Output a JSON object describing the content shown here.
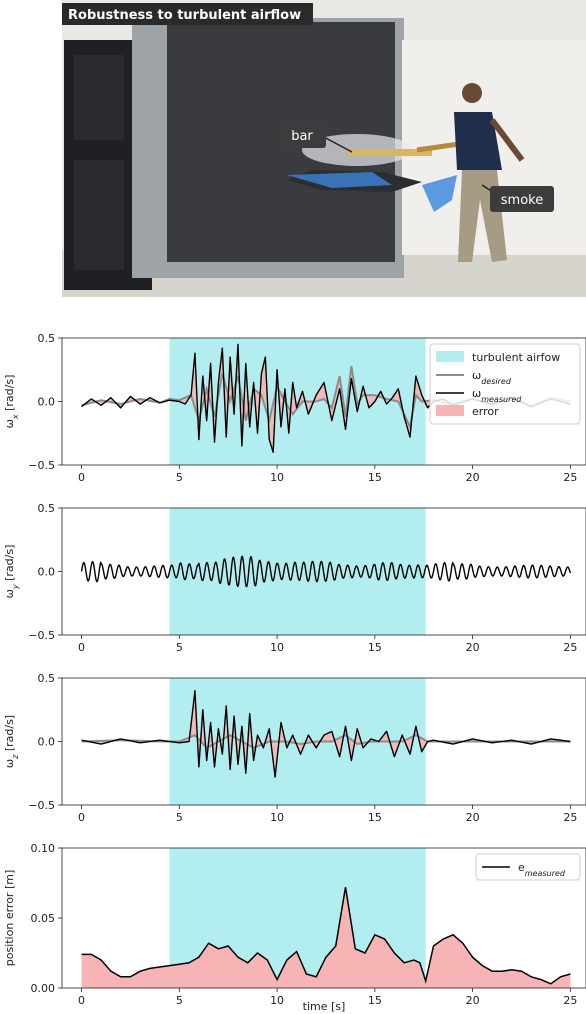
{
  "photo": {
    "title": "Robustness to turbulent airflow",
    "label_bar": "bar",
    "label_smoke": "smoke"
  },
  "colors": {
    "shade": "#b2eeef",
    "error": "#f7b4b4",
    "desired": "#8c8c8c",
    "measured": "#000000"
  },
  "chart_data": [
    {
      "type": "line",
      "ylabel": "ω_x [rad/s]",
      "ylim": [
        -0.5,
        0.5
      ],
      "xlim": [
        -1,
        25.8
      ],
      "yticks": [
        "−0.5",
        "0.0",
        "0.5"
      ],
      "yticks_values": [
        -0.5,
        0.0,
        0.5
      ],
      "xticks": [
        "0",
        "5",
        "10",
        "15",
        "20",
        "25"
      ],
      "xticks_values": [
        0,
        5,
        10,
        15,
        20,
        25
      ],
      "shaded_region": [
        4.5,
        17.6
      ],
      "legend": {
        "placement": "top-right",
        "entries": [
          "turbulent airfow",
          "ω_desired",
          "ω_measured",
          "error"
        ]
      },
      "series": [
        {
          "name": "ω_measured",
          "x": [
            0,
            0.5,
            1,
            1.5,
            2,
            2.5,
            3,
            3.5,
            4,
            4.5,
            5,
            5.3,
            5.6,
            5.8,
            6.0,
            6.2,
            6.4,
            6.6,
            6.8,
            7.0,
            7.2,
            7.4,
            7.6,
            7.8,
            8.0,
            8.2,
            8.4,
            8.6,
            8.8,
            9.0,
            9.2,
            9.4,
            9.6,
            9.8,
            10.0,
            10.2,
            10.4,
            10.6,
            10.8,
            11.0,
            11.3,
            11.6,
            12.0,
            12.4,
            12.8,
            13.2,
            13.5,
            13.8,
            14.1,
            14.4,
            14.7,
            15.0,
            15.3,
            15.6,
            15.9,
            16.2,
            16.5,
            16.8,
            17.1,
            17.4,
            17.7,
            18.0,
            18.5,
            19,
            20,
            21,
            22,
            23,
            24,
            25
          ],
          "values": [
            -0.04,
            0.02,
            -0.03,
            0.03,
            -0.05,
            0.04,
            -0.02,
            0.03,
            -0.01,
            0.01,
            0.0,
            -0.02,
            0.05,
            0.38,
            -0.3,
            0.2,
            -0.15,
            0.3,
            -0.32,
            0.15,
            0.42,
            -0.28,
            0.35,
            -0.1,
            0.45,
            -0.35,
            0.3,
            -0.2,
            0.15,
            -0.25,
            0.22,
            0.35,
            -0.3,
            -0.4,
            0.25,
            -0.2,
            0.1,
            -0.25,
            0.15,
            -0.05,
            0.08,
            -0.1,
            0.05,
            0.15,
            -0.15,
            0.1,
            -0.22,
            0.18,
            -0.08,
            0.12,
            -0.05,
            0.0,
            0.08,
            -0.02,
            0.03,
            0.1,
            -0.12,
            -0.28,
            0.2,
            0.05,
            -0.05,
            0.0,
            0.02,
            -0.03,
            0.02,
            -0.02,
            0.03,
            -0.04,
            0.02,
            -0.02
          ]
        },
        {
          "name": "ω_desired",
          "x": [
            0,
            1,
            2,
            3,
            4,
            4.5,
            5,
            5.6,
            6.0,
            6.4,
            6.8,
            7.2,
            7.6,
            8.0,
            8.4,
            8.8,
            9.2,
            9.6,
            10.0,
            10.4,
            10.8,
            11.3,
            12.0,
            12.4,
            12.8,
            13.2,
            13.5,
            13.8,
            14.1,
            14.4,
            15.0,
            15.6,
            16.2,
            16.8,
            17.1,
            17.4,
            18,
            19,
            20,
            21,
            22,
            23,
            24,
            25
          ],
          "values": [
            -0.03,
            0.01,
            -0.02,
            0.02,
            -0.01,
            0.02,
            0.01,
            0.05,
            -0.15,
            0.1,
            -0.12,
            0.22,
            0.0,
            0.2,
            -0.15,
            0.1,
            0.05,
            -0.15,
            0.12,
            0.0,
            -0.1,
            0.0,
            0.0,
            0.02,
            -0.05,
            0.2,
            -0.12,
            0.28,
            -0.02,
            0.05,
            0.05,
            0.02,
            0.0,
            -0.2,
            0.05,
            0.0,
            0.01,
            -0.02,
            0.02,
            -0.03,
            0.03,
            -0.04,
            0.03,
            0.0
          ]
        }
      ]
    },
    {
      "type": "line",
      "ylabel": "ω_y [rad/s]",
      "ylim": [
        -0.5,
        0.5
      ],
      "xlim": [
        -1,
        25.8
      ],
      "yticks": [
        "−0.5",
        "0.0",
        "0.5"
      ],
      "yticks_values": [
        -0.5,
        0.0,
        0.5
      ],
      "xticks": [
        "0",
        "5",
        "10",
        "15",
        "20",
        "25"
      ],
      "xticks_values": [
        0,
        5,
        10,
        15,
        20,
        25
      ],
      "shaded_region": [
        4.5,
        17.6
      ],
      "series": [
        {
          "name": "ω_measured",
          "oscillation": {
            "x_start": 0,
            "x_end": 25,
            "period": 0.45,
            "amplitude": [
              0.08,
              0.06,
              0.05,
              0.05,
              0.05,
              0.07,
              0.1,
              0.12,
              0.12,
              0.1,
              0.09,
              0.08,
              0.08,
              0.07,
              0.06,
              0.07,
              0.06,
              0.07,
              0.08,
              0.06,
              0.05,
              0.05,
              0.05,
              0.05,
              0.05,
              0.05
            ]
          }
        }
      ]
    },
    {
      "type": "line",
      "ylabel": "ω_z [rad/s]",
      "ylim": [
        -0.5,
        0.5
      ],
      "xlim": [
        -1,
        25.8
      ],
      "yticks": [
        "−0.5",
        "0.0",
        "0.5"
      ],
      "yticks_values": [
        -0.5,
        0.0,
        0.5
      ],
      "xticks": [
        "0",
        "5",
        "10",
        "15",
        "20",
        "25"
      ],
      "xticks_values": [
        0,
        5,
        10,
        15,
        20,
        25
      ],
      "shaded_region": [
        4.5,
        17.6
      ],
      "series": [
        {
          "name": "ω_measured",
          "x": [
            0,
            1,
            2,
            3,
            4,
            4.5,
            5,
            5.5,
            5.8,
            6.0,
            6.2,
            6.4,
            6.6,
            6.8,
            7.0,
            7.2,
            7.4,
            7.6,
            7.8,
            8.0,
            8.2,
            8.4,
            8.6,
            8.8,
            9.0,
            9.3,
            9.6,
            9.9,
            10.2,
            10.5,
            10.8,
            11.2,
            11.6,
            12.0,
            12.4,
            12.8,
            13.2,
            13.5,
            13.8,
            14.1,
            14.4,
            14.8,
            15.2,
            15.6,
            16.0,
            16.4,
            16.8,
            17.1,
            17.4,
            17.7,
            18,
            19,
            20,
            21,
            22,
            23,
            24,
            25
          ],
          "values": [
            0.01,
            -0.02,
            0.02,
            -0.01,
            0.01,
            0.0,
            -0.01,
            0.0,
            0.4,
            -0.2,
            0.25,
            -0.15,
            0.15,
            -0.2,
            0.1,
            -0.1,
            0.28,
            -0.22,
            0.2,
            -0.18,
            0.12,
            -0.25,
            0.22,
            -0.15,
            0.05,
            -0.05,
            0.1,
            -0.28,
            0.15,
            -0.05,
            0.05,
            -0.1,
            0.05,
            -0.05,
            0.05,
            0.08,
            -0.12,
            0.12,
            -0.15,
            0.1,
            -0.05,
            0.02,
            0.0,
            0.08,
            -0.12,
            0.05,
            -0.1,
            0.12,
            -0.08,
            0.0,
            0.01,
            -0.02,
            0.02,
            -0.01,
            0.01,
            -0.02,
            0.02,
            0.0
          ]
        },
        {
          "name": "ω_desired",
          "x": [
            0,
            2,
            4,
            5,
            5.8,
            6.4,
            7.0,
            7.6,
            8.2,
            8.8,
            9.6,
            10.5,
            11.2,
            12.0,
            12.8,
            13.5,
            14.1,
            14.8,
            15.6,
            16.4,
            17.1,
            17.7,
            19,
            21,
            23,
            25
          ],
          "values": [
            0.0,
            0.01,
            0.0,
            0.0,
            0.05,
            -0.05,
            0.0,
            0.05,
            0.0,
            -0.05,
            0.0,
            0.0,
            -0.02,
            0.0,
            0.0,
            0.05,
            -0.02,
            0.0,
            0.0,
            0.0,
            0.05,
            0.0,
            0.0,
            0.0,
            0.0,
            0.0
          ]
        }
      ]
    },
    {
      "type": "area",
      "ylabel": "position error [m]",
      "xlabel": "time [s]",
      "ylim": [
        0.0,
        0.1
      ],
      "xlim": [
        -1,
        25.8
      ],
      "yticks": [
        "0.00",
        "0.05",
        "0.10"
      ],
      "yticks_values": [
        0.0,
        0.05,
        0.1
      ],
      "xticks": [
        "0",
        "5",
        "10",
        "15",
        "20",
        "25"
      ],
      "xticks_values": [
        0,
        5,
        10,
        15,
        20,
        25
      ],
      "shaded_region": [
        4.5,
        17.6
      ],
      "legend": {
        "placement": "top-right",
        "entries": [
          "e_measured"
        ]
      },
      "series": [
        {
          "name": "e_measured",
          "x": [
            0,
            0.5,
            1.0,
            1.5,
            2.0,
            2.5,
            3.0,
            3.5,
            4.0,
            4.5,
            5.0,
            5.5,
            6.0,
            6.5,
            7.0,
            7.5,
            8.0,
            8.5,
            9.0,
            9.5,
            10.0,
            10.5,
            11.0,
            11.5,
            12.0,
            12.5,
            13.0,
            13.5,
            14.0,
            14.5,
            15.0,
            15.5,
            16.0,
            16.5,
            17.0,
            17.3,
            17.6,
            18.0,
            18.5,
            19.0,
            19.5,
            20.0,
            20.5,
            21.0,
            21.5,
            22.0,
            22.5,
            23.0,
            23.5,
            24.0,
            24.5,
            25.0
          ],
          "values": [
            0.024,
            0.024,
            0.02,
            0.012,
            0.008,
            0.008,
            0.012,
            0.014,
            0.015,
            0.016,
            0.017,
            0.018,
            0.022,
            0.032,
            0.028,
            0.03,
            0.022,
            0.018,
            0.025,
            0.02,
            0.006,
            0.02,
            0.026,
            0.01,
            0.008,
            0.022,
            0.03,
            0.072,
            0.028,
            0.025,
            0.038,
            0.035,
            0.025,
            0.018,
            0.02,
            0.018,
            0.005,
            0.03,
            0.035,
            0.038,
            0.032,
            0.022,
            0.016,
            0.012,
            0.012,
            0.013,
            0.012,
            0.008,
            0.006,
            0.003,
            0.008,
            0.01
          ]
        }
      ]
    }
  ]
}
